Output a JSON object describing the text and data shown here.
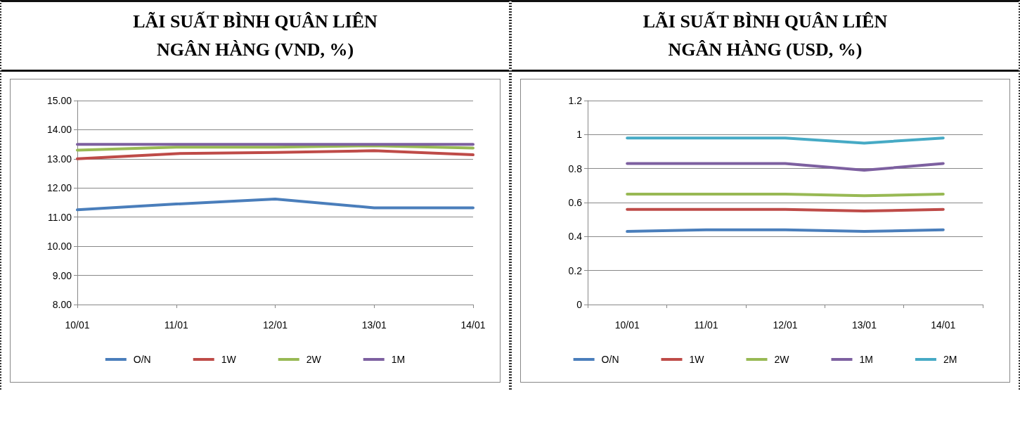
{
  "chart_data": [
    {
      "type": "line",
      "title": "LÃI SUẤT BÌNH QUÂN LIÊN NGÂN HÀNG (VND, %)",
      "categories": [
        "10/01",
        "11/01",
        "12/01",
        "13/01",
        "14/01"
      ],
      "series": [
        {
          "name": "O/N",
          "color": "#4a7ebb",
          "values": [
            11.25,
            11.45,
            11.62,
            11.32,
            11.32
          ]
        },
        {
          "name": "1W",
          "color": "#be4b48",
          "values": [
            13.0,
            13.18,
            13.22,
            13.28,
            13.14
          ]
        },
        {
          "name": "2W",
          "color": "#98b954",
          "values": [
            13.3,
            13.4,
            13.4,
            13.45,
            13.37
          ]
        },
        {
          "name": "1M",
          "color": "#7d60a0",
          "values": [
            13.5,
            13.5,
            13.5,
            13.5,
            13.5
          ]
        }
      ],
      "ylim": [
        8,
        15
      ],
      "yticks": [
        {
          "value": 8,
          "label": "8.00"
        },
        {
          "value": 9,
          "label": "9.00"
        },
        {
          "value": 10,
          "label": "10.00"
        },
        {
          "value": 11,
          "label": "11.00"
        },
        {
          "value": 12,
          "label": "12.00"
        },
        {
          "value": 13,
          "label": "13.00"
        },
        {
          "value": 14,
          "label": "14.00"
        },
        {
          "value": 15,
          "label": "15.00"
        }
      ],
      "grid": "y",
      "legend": "bottom",
      "marker": "none",
      "line_style": "solid"
    },
    {
      "type": "line",
      "title": "LÃI SUẤT BÌNH QUÂN LIÊN NGÂN HÀNG (USD, %)",
      "categories": [
        "10/01",
        "11/01",
        "12/01",
        "13/01",
        "14/01"
      ],
      "series": [
        {
          "name": "O/N",
          "color": "#4a7ebb",
          "values": [
            0.43,
            0.44,
            0.44,
            0.43,
            0.44
          ]
        },
        {
          "name": "1W",
          "color": "#be4b48",
          "values": [
            0.56,
            0.56,
            0.56,
            0.55,
            0.56
          ]
        },
        {
          "name": "2W",
          "color": "#98b954",
          "values": [
            0.65,
            0.65,
            0.65,
            0.64,
            0.65
          ]
        },
        {
          "name": "1M",
          "color": "#7d60a0",
          "values": [
            0.83,
            0.83,
            0.83,
            0.79,
            0.83
          ]
        },
        {
          "name": "2M",
          "color": "#46aac5",
          "values": [
            0.98,
            0.98,
            0.98,
            0.95,
            0.98
          ]
        }
      ],
      "ylim": [
        0,
        1.2
      ],
      "yticks": [
        0,
        0.2,
        0.4,
        0.6,
        0.8,
        1,
        1.2
      ],
      "grid": "y",
      "legend": "bottom",
      "marker": "none",
      "line_style": "solid"
    }
  ]
}
